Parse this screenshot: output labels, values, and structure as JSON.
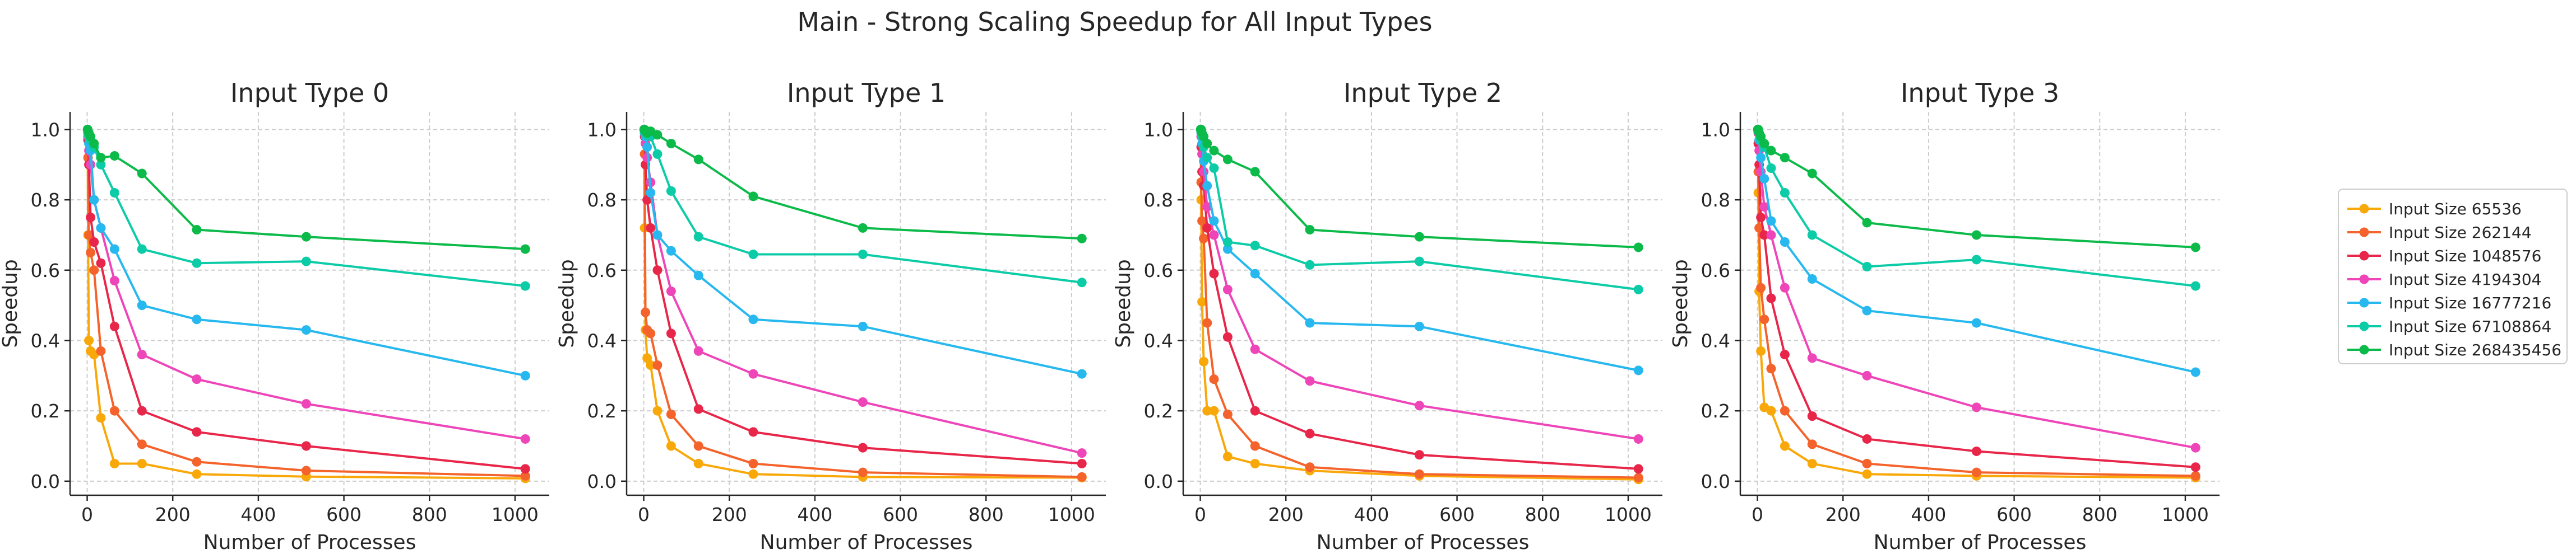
{
  "title": "Main - Strong Scaling Speedup for All Input Types",
  "chart_data": {
    "type": "line",
    "x": [
      1,
      2,
      4,
      8,
      16,
      32,
      64,
      128,
      256,
      512,
      1024
    ],
    "xlim": [
      -40,
      1080
    ],
    "ylim": [
      -0.04,
      1.05
    ],
    "xticks": [
      0,
      200,
      400,
      600,
      800,
      1000
    ],
    "yticks": [
      0.0,
      0.2,
      0.4,
      0.6,
      0.8,
      1.0
    ],
    "xlabel": "Number of Processes",
    "ylabel": "Speedup",
    "grid": true,
    "legend_position": "right",
    "series_info": [
      {
        "name": "Input Size 65536",
        "color": "#f9a80a"
      },
      {
        "name": "Input Size 262144",
        "color": "#f4632b"
      },
      {
        "name": "Input Size 1048576",
        "color": "#e8264a"
      },
      {
        "name": "Input Size 4194304",
        "color": "#ee45b8"
      },
      {
        "name": "Input Size 16777216",
        "color": "#26b8ee"
      },
      {
        "name": "Input Size 67108864",
        "color": "#0ccba7"
      },
      {
        "name": "Input Size 268435456",
        "color": "#0cba4a"
      }
    ],
    "panels": [
      {
        "title": "Input Type 0",
        "series": [
          {
            "name": "Input Size 65536",
            "values": [
              1.0,
              0.7,
              0.4,
              0.37,
              0.36,
              0.18,
              0.05,
              0.05,
              0.02,
              0.013,
              0.008
            ]
          },
          {
            "name": "Input Size 262144",
            "values": [
              1.0,
              0.92,
              0.7,
              0.65,
              0.6,
              0.37,
              0.2,
              0.105,
              0.055,
              0.03,
              0.015
            ]
          },
          {
            "name": "Input Size 1048576",
            "values": [
              1.0,
              0.97,
              0.9,
              0.75,
              0.68,
              0.62,
              0.44,
              0.2,
              0.14,
              0.1,
              0.035
            ]
          },
          {
            "name": "Input Size 4194304",
            "values": [
              1.0,
              0.98,
              0.94,
              0.9,
              0.8,
              0.72,
              0.57,
              0.36,
              0.29,
              0.22,
              0.12
            ]
          },
          {
            "name": "Input Size 16777216",
            "values": [
              1.0,
              0.99,
              0.96,
              0.94,
              0.8,
              0.72,
              0.66,
              0.5,
              0.46,
              0.43,
              0.3
            ]
          },
          {
            "name": "Input Size 67108864",
            "values": [
              1.0,
              0.99,
              0.98,
              0.97,
              0.95,
              0.9,
              0.82,
              0.66,
              0.62,
              0.625,
              0.555
            ]
          },
          {
            "name": "Input Size 268435456",
            "values": [
              1.0,
              0.995,
              0.99,
              0.98,
              0.96,
              0.92,
              0.925,
              0.875,
              0.715,
              0.695,
              0.66
            ]
          }
        ]
      },
      {
        "title": "Input Type 1",
        "series": [
          {
            "name": "Input Size 65536",
            "values": [
              1.0,
              0.72,
              0.43,
              0.35,
              0.33,
              0.2,
              0.1,
              0.05,
              0.02,
              0.012,
              0.01
            ]
          },
          {
            "name": "Input Size 262144",
            "values": [
              1.0,
              0.93,
              0.48,
              0.43,
              0.42,
              0.33,
              0.19,
              0.1,
              0.05,
              0.025,
              0.012
            ]
          },
          {
            "name": "Input Size 1048576",
            "values": [
              1.0,
              0.98,
              0.9,
              0.8,
              0.72,
              0.6,
              0.42,
              0.205,
              0.14,
              0.095,
              0.05
            ]
          },
          {
            "name": "Input Size 4194304",
            "values": [
              1.0,
              0.99,
              0.96,
              0.92,
              0.85,
              0.7,
              0.54,
              0.37,
              0.305,
              0.225,
              0.08
            ]
          },
          {
            "name": "Input Size 16777216",
            "values": [
              1.0,
              0.99,
              0.98,
              0.95,
              0.82,
              0.7,
              0.655,
              0.585,
              0.46,
              0.44,
              0.305
            ]
          },
          {
            "name": "Input Size 67108864",
            "values": [
              1.0,
              0.995,
              0.99,
              0.985,
              0.98,
              0.93,
              0.825,
              0.695,
              0.645,
              0.645,
              0.565
            ]
          },
          {
            "name": "Input Size 268435456",
            "values": [
              1.0,
              1.0,
              0.995,
              0.99,
              0.995,
              0.985,
              0.96,
              0.915,
              0.81,
              0.72,
              0.69
            ]
          }
        ]
      },
      {
        "title": "Input Type 2",
        "series": [
          {
            "name": "Input Size 65536",
            "values": [
              1.0,
              0.8,
              0.51,
              0.34,
              0.2,
              0.2,
              0.07,
              0.05,
              0.03,
              0.015,
              0.005
            ]
          },
          {
            "name": "Input Size 262144",
            "values": [
              1.0,
              0.85,
              0.74,
              0.69,
              0.45,
              0.29,
              0.19,
              0.1,
              0.04,
              0.02,
              0.01
            ]
          },
          {
            "name": "Input Size 1048576",
            "values": [
              1.0,
              0.95,
              0.88,
              0.84,
              0.72,
              0.59,
              0.41,
              0.2,
              0.135,
              0.075,
              0.035
            ]
          },
          {
            "name": "Input Size 4194304",
            "values": [
              1.0,
              0.98,
              0.93,
              0.88,
              0.78,
              0.7,
              0.545,
              0.375,
              0.285,
              0.215,
              0.12
            ]
          },
          {
            "name": "Input Size 16777216",
            "values": [
              1.0,
              0.99,
              0.96,
              0.91,
              0.84,
              0.74,
              0.66,
              0.59,
              0.45,
              0.44,
              0.315
            ]
          },
          {
            "name": "Input Size 67108864",
            "values": [
              1.0,
              0.995,
              0.98,
              0.95,
              0.92,
              0.89,
              0.68,
              0.67,
              0.615,
              0.625,
              0.545
            ]
          },
          {
            "name": "Input Size 268435456",
            "values": [
              1.0,
              1.0,
              0.99,
              0.98,
              0.96,
              0.94,
              0.915,
              0.88,
              0.715,
              0.695,
              0.665
            ]
          }
        ]
      },
      {
        "title": "Input Type 3",
        "series": [
          {
            "name": "Input Size 65536",
            "values": [
              1.0,
              0.82,
              0.54,
              0.37,
              0.21,
              0.2,
              0.1,
              0.05,
              0.02,
              0.015,
              0.01
            ]
          },
          {
            "name": "Input Size 262144",
            "values": [
              1.0,
              0.88,
              0.72,
              0.55,
              0.46,
              0.32,
              0.2,
              0.105,
              0.05,
              0.025,
              0.015
            ]
          },
          {
            "name": "Input Size 1048576",
            "values": [
              1.0,
              0.96,
              0.9,
              0.75,
              0.7,
              0.52,
              0.36,
              0.185,
              0.12,
              0.085,
              0.04
            ]
          },
          {
            "name": "Input Size 4194304",
            "values": [
              1.0,
              0.99,
              0.94,
              0.88,
              0.78,
              0.7,
              0.55,
              0.35,
              0.3,
              0.21,
              0.095
            ]
          },
          {
            "name": "Input Size 16777216",
            "values": [
              1.0,
              0.995,
              0.97,
              0.92,
              0.86,
              0.74,
              0.68,
              0.575,
              0.485,
              0.45,
              0.31
            ]
          },
          {
            "name": "Input Size 67108864",
            "values": [
              1.0,
              0.995,
              0.99,
              0.97,
              0.95,
              0.89,
              0.82,
              0.7,
              0.61,
              0.63,
              0.555
            ]
          },
          {
            "name": "Input Size 268435456",
            "values": [
              1.0,
              1.0,
              0.99,
              0.98,
              0.96,
              0.94,
              0.92,
              0.875,
              0.735,
              0.7,
              0.665
            ]
          }
        ]
      }
    ]
  }
}
